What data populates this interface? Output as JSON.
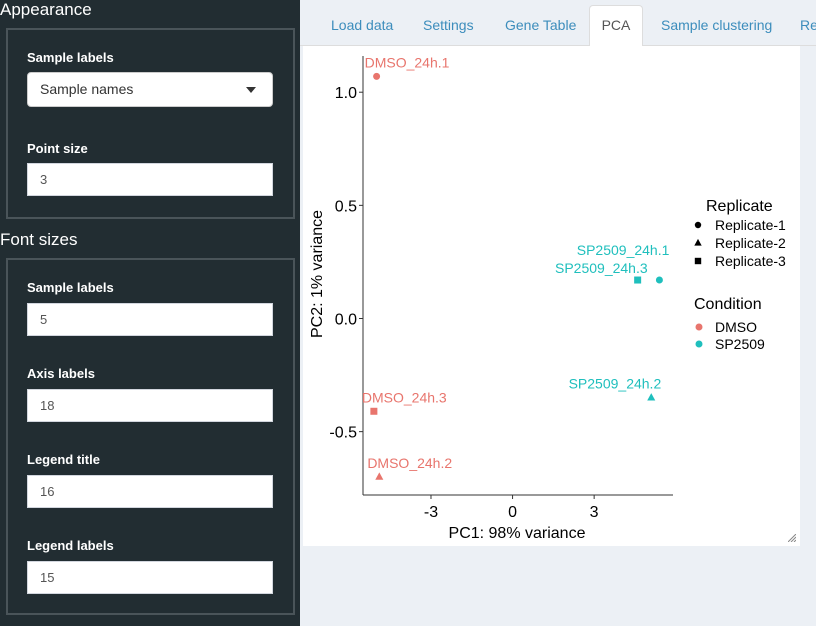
{
  "sidebar": {
    "appearance_title": "Appearance",
    "sample_labels_label": "Sample labels",
    "sample_labels_value": "Sample names",
    "point_size_label": "Point size",
    "point_size_value": "3",
    "font_sizes_title": "Font sizes",
    "font_sample_labels_label": "Sample labels",
    "font_sample_labels_value": "5",
    "axis_labels_label": "Axis labels",
    "axis_labels_value": "18",
    "legend_title_label": "Legend title",
    "legend_title_value": "16",
    "legend_labels_label": "Legend labels",
    "legend_labels_value": "15"
  },
  "tabs": [
    {
      "label": "Load data"
    },
    {
      "label": "Settings"
    },
    {
      "label": "Gene Table"
    },
    {
      "label": "PCA"
    },
    {
      "label": "Sample clustering"
    },
    {
      "label": "Re"
    }
  ],
  "colors": {
    "dmso": "#e8756d",
    "sp2509": "#1fbfbd",
    "accent": "#3c8dbc"
  },
  "chart_data": {
    "type": "scatter",
    "xlabel": "PC1: 98% variance",
    "ylabel": "PC2: 1% variance",
    "x_ticks": [
      -3,
      0,
      3
    ],
    "y_ticks": [
      1.0,
      0.5,
      0.0,
      -0.5
    ],
    "x_tick_labels": [
      "-3",
      "0",
      "3"
    ],
    "y_tick_labels": [
      "1.0",
      "0.5",
      "0.0",
      "-0.5"
    ],
    "xlim": [
      -5.5,
      5.9
    ],
    "ylim": [
      -0.78,
      1.16
    ],
    "points": [
      {
        "label": "DMSO_24h.1",
        "x": -5.0,
        "y": 1.07,
        "condition": "DMSO",
        "replicate": "Replicate-1"
      },
      {
        "label": "DMSO_24h.2",
        "x": -4.9,
        "y": -0.7,
        "condition": "DMSO",
        "replicate": "Replicate-2"
      },
      {
        "label": "DMSO_24h.3",
        "x": -5.1,
        "y": -0.41,
        "condition": "DMSO",
        "replicate": "Replicate-3"
      },
      {
        "label": "SP2509_24h.1",
        "x": 5.4,
        "y": 0.17,
        "condition": "SP2509",
        "replicate": "Replicate-1"
      },
      {
        "label": "SP2509_24h.2",
        "x": 5.1,
        "y": -0.35,
        "condition": "SP2509",
        "replicate": "Replicate-2"
      },
      {
        "label": "SP2509_24h.3",
        "x": 4.6,
        "y": 0.17,
        "condition": "SP2509",
        "replicate": "Replicate-3"
      }
    ],
    "legend": {
      "position": "right",
      "replicate_title": "Replicate",
      "replicate_items": [
        {
          "label": "Replicate-1",
          "shape": "circle"
        },
        {
          "label": "Replicate-2",
          "shape": "triangle"
        },
        {
          "label": "Replicate-3",
          "shape": "square"
        }
      ],
      "condition_title": "Condition",
      "condition_items": [
        {
          "label": "DMSO",
          "color_key": "dmso"
        },
        {
          "label": "SP2509",
          "color_key": "sp2509"
        }
      ]
    }
  }
}
